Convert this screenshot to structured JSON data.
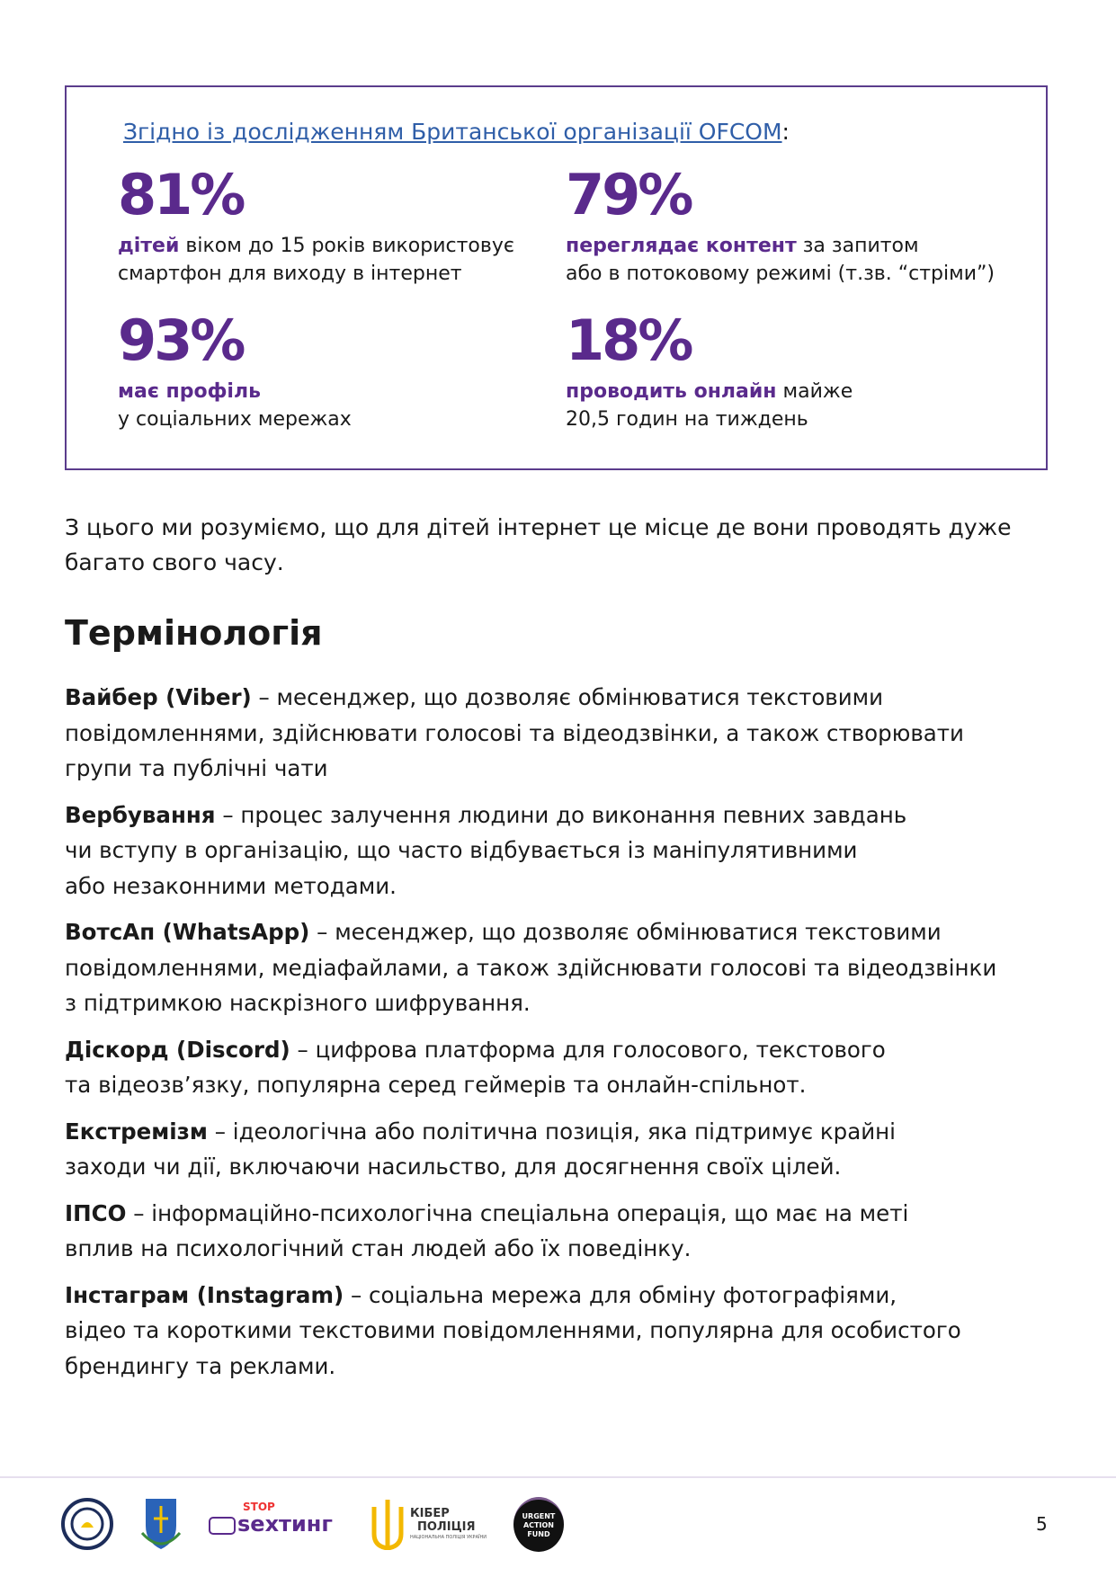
{
  "box": {
    "source_link": "Згідно із дослідженням Британської організації OFCOM",
    "source_colon": ":",
    "stats": [
      {
        "value": "81%",
        "bold": "дітей",
        "rest": " віком до 15 років використовує\nсмартфон для виходу в інтернет"
      },
      {
        "value": "79%",
        "bold": "переглядає контент",
        "rest": " за запитом\nабо в потоковому режимі (т.зв. “стріми”)"
      },
      {
        "value": "93%",
        "bold": "має профіль",
        "rest": "\nу соціальних мережах"
      },
      {
        "value": "18%",
        "bold": "проводить онлайн",
        "rest": " майже\n20,5 годин на тиждень"
      }
    ],
    "accent_color": "#5a2a8c"
  },
  "intro": "З цього ми розуміємо, що для дітей інтернет це місце де вони проводять дуже\nбагато свого часу.",
  "heading": "Термінологія",
  "terms": [
    {
      "term": "Вайбер (Viber)",
      "def": " – месенджер, що дозволяє обмінюватися текстовими\nповідомленнями, здійснювати голосові та відеодзвінки, а також створювати\nгрупи та публічні чати"
    },
    {
      "term": "Вербування",
      "def": " – процес залучення людини до виконання певних завдань\nчи вступу в організацію, що часто відбувається із маніпулятивними\nабо незаконними методами."
    },
    {
      "term": "ВотсАп (WhatsApp)",
      "def": " – месенджер, що дозволяє обмінюватися текстовими\nповідомленнями, медіафайлами, а також здійснювати голосові та відеодзвінки\nз підтримкою наскрізного шифрування."
    },
    {
      "term": "Діскорд (Discord)",
      "def": " – цифрова платформа для голосового, текстового\nта відеозв’язку, популярна серед геймерів та онлайн-спільнот."
    },
    {
      "term": "Екстремізм",
      "def": " – ідеологічна або політична позиція, яка підтримує крайні\nзаходи чи дії, включаючи насильство, для досягнення своїх цілей."
    },
    {
      "term": "ІПСО",
      "def": " – інформаційно-психологічна спеціальна операція, що має на меті\nвплив на психологічний стан людей або їх поведінку."
    },
    {
      "term": "Інстаграм (Instagram)",
      "def": " – соціальна мережа для обміну фотографіями,\nвідео та короткими текстовими повідомленнями, популярна для особистого\nбрендингу та реклами."
    }
  ],
  "footer": {
    "logos": [
      "Національна поліція України (ювенальна)",
      "Офіс Генерального прокурора",
      "STOP sexтинг",
      "Кібер поліція Національна поліція України",
      "URGENT ACTION FUND"
    ],
    "stop_sexting": {
      "top": "STOP",
      "main": "sexтинг"
    },
    "cyber": {
      "l1": "КІБЕР",
      "l2": "ПОЛІЦІЯ",
      "l3": "НАЦІОНАЛЬНА ПОЛІЦІЯ УКРАЇНИ"
    },
    "uaf": {
      "l1": "URGENT",
      "l2": "ACTION",
      "l3": "FUND"
    },
    "page_number": "5"
  }
}
